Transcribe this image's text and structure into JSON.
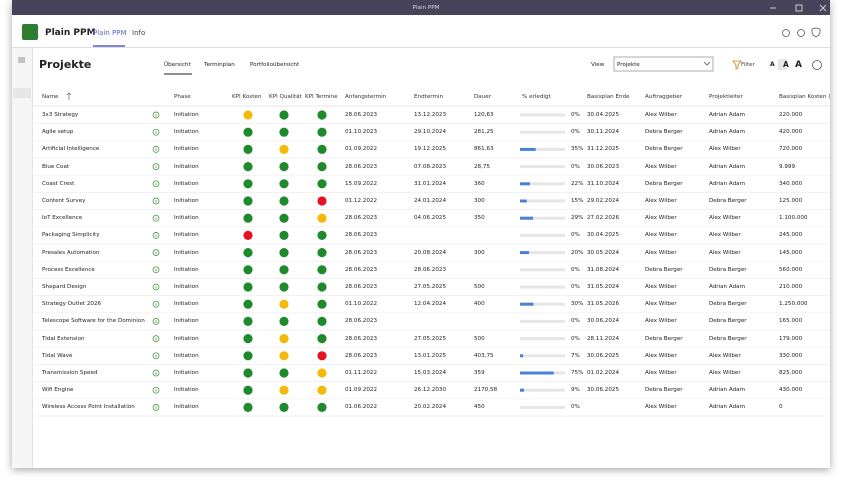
{
  "window": {
    "title": "Plain PPM"
  },
  "app": {
    "name": "Plain PPM",
    "tabs": [
      "Plain PPM",
      "Info"
    ]
  },
  "page": {
    "title": "Projekte",
    "views": [
      "Übersicht",
      "Terminplan",
      "Portfolioübersicht"
    ],
    "view_label": "View",
    "view_value": "Projekte",
    "filter": "Filter",
    "font_sizes": [
      "A",
      "A",
      "A"
    ]
  },
  "kpi_palette": {
    "green": "#1f8a2c",
    "yellow": "#f5b90a",
    "red": "#e81123"
  },
  "table": {
    "columns": [
      "Name",
      "Phase",
      "KPI Kosten",
      "KPI Qualität",
      "KPI Termine",
      "Anfangstermin",
      "Endtermin",
      "Dauer",
      "% erledigt",
      "Basisplan Ende",
      "Auftraggeber",
      "Projektleiter",
      "Basisplan Kosten (€)"
    ],
    "rows": [
      {
        "name": "3x3 Strategy",
        "phase": "Initiation",
        "kpi": [
          "yellow",
          "green",
          "green"
        ],
        "start": "28.06.2023",
        "end": "13.12.2023",
        "duration": "120,63",
        "done": 0,
        "done_label": "0%",
        "baseline_end": "30.04.2025",
        "client": "Alex Wilber",
        "manager": "Adrian Adam",
        "cost": "220.000"
      },
      {
        "name": "Agile setup",
        "phase": "Initiation",
        "kpi": [
          "green",
          "green",
          "green"
        ],
        "start": "01.10.2023",
        "end": "29.10.2024",
        "duration": "281,25",
        "done": 0,
        "done_label": "0%",
        "baseline_end": "30.11.2024",
        "client": "Debra Berger",
        "manager": "Adrian Adam",
        "cost": "420.000"
      },
      {
        "name": "Artificial Intelligence",
        "phase": "Initiation",
        "kpi": [
          "green",
          "yellow",
          "green"
        ],
        "start": "01.09.2022",
        "end": "19.12.2025",
        "duration": "861,63",
        "done": 35,
        "done_label": "35%",
        "baseline_end": "31.12.2025",
        "client": "Debra Berger",
        "manager": "Alex Wilber",
        "cost": "720.000"
      },
      {
        "name": "Blue Coat",
        "phase": "Initiation",
        "kpi": [
          "green",
          "green",
          "green"
        ],
        "start": "28.06.2023",
        "end": "07.08.2023",
        "duration": "28,75",
        "done": 0,
        "done_label": "0%",
        "baseline_end": "30.06.2023",
        "client": "Alex Wilber",
        "manager": "Adrian Adam",
        "cost": "9.999"
      },
      {
        "name": "Coast Crest",
        "phase": "Initiation",
        "kpi": [
          "green",
          "green",
          "green"
        ],
        "start": "15.09.2022",
        "end": "31.01.2024",
        "duration": "360",
        "done": 22,
        "done_label": "22%",
        "baseline_end": "31.10.2024",
        "client": "Debra Berger",
        "manager": "Adrian Adam",
        "cost": "340.000"
      },
      {
        "name": "Content Survey",
        "phase": "Initiation",
        "kpi": [
          "green",
          "green",
          "red"
        ],
        "start": "01.12.2022",
        "end": "24.01.2024",
        "duration": "300",
        "done": 15,
        "done_label": "15%",
        "baseline_end": "29.02.2024",
        "client": "Alex Wilber",
        "manager": "Debra Berger",
        "cost": "125.000"
      },
      {
        "name": "IoT Excellence",
        "phase": "Initiation",
        "kpi": [
          "green",
          "green",
          "yellow"
        ],
        "start": "28.06.2023",
        "end": "04.06.2025",
        "duration": "350",
        "done": 29,
        "done_label": "29%",
        "baseline_end": "27.02.2026",
        "client": "Alex Wilber",
        "manager": "Alex Wilber",
        "cost": "1.100.000"
      },
      {
        "name": "Packaging Simplicity",
        "phase": "Initiation",
        "kpi": [
          "red",
          "green",
          "green"
        ],
        "start": "28.06.2023",
        "end": null,
        "duration": null,
        "done": 0,
        "done_label": "0%",
        "baseline_end": "30.04.2025",
        "client": "Alex Wilber",
        "manager": "Alex Wilber",
        "cost": "245.000"
      },
      {
        "name": "Presales Automation",
        "phase": "Initiation",
        "kpi": [
          "green",
          "green",
          "green"
        ],
        "start": "28.06.2023",
        "end": "20.08.2024",
        "duration": "300",
        "done": 20,
        "done_label": "20%",
        "baseline_end": "30.05.2024",
        "client": "Alex Wilber",
        "manager": "Alex Wilber",
        "cost": "145.000"
      },
      {
        "name": "Process Excellence",
        "phase": "Initiation",
        "kpi": [
          "green",
          "green",
          "green"
        ],
        "start": "28.06.2023",
        "end": "28.06.2023",
        "duration": null,
        "done": 0,
        "done_label": "0%",
        "baseline_end": "31.08.2024",
        "client": "Debra Berger",
        "manager": "Debra Berger",
        "cost": "560.000"
      },
      {
        "name": "Shepard Design",
        "phase": "Initiation",
        "kpi": [
          "green",
          "green",
          "green"
        ],
        "start": "28.06.2023",
        "end": "27.05.2025",
        "duration": "500",
        "done": 0,
        "done_label": "0%",
        "baseline_end": "31.05.2024",
        "client": "Alex Wilber",
        "manager": "Adrian Adam",
        "cost": "210.000"
      },
      {
        "name": "Strategy Outlet 2026",
        "phase": "Initiation",
        "kpi": [
          "green",
          "yellow",
          "green"
        ],
        "start": "01.10.2022",
        "end": "12.04.2024",
        "duration": "400",
        "done": 30,
        "done_label": "30%",
        "baseline_end": "31.05.2026",
        "client": "Alex Wilber",
        "manager": "Debra Berger",
        "cost": "1.250.000"
      },
      {
        "name": "Telescope Software for the Dominion",
        "phase": "Initiation",
        "kpi": [
          "green",
          "green",
          "green"
        ],
        "start": "28.06.2023",
        "end": null,
        "duration": null,
        "done": 0,
        "done_label": "0%",
        "baseline_end": "30.06.2024",
        "client": "Alex Wilber",
        "manager": "Debra Berger",
        "cost": "165.000"
      },
      {
        "name": "Tidal Extension",
        "phase": "Initiation",
        "kpi": [
          "green",
          "yellow",
          "green"
        ],
        "start": "28.06.2023",
        "end": "27.05.2025",
        "duration": "500",
        "done": 0,
        "done_label": "0%",
        "baseline_end": "28.11.2024",
        "client": "Debra Berger",
        "manager": "Debra Berger",
        "cost": "179.000"
      },
      {
        "name": "Tidal Wave",
        "phase": "Initiation",
        "kpi": [
          "green",
          "yellow",
          "red"
        ],
        "start": "28.06.2023",
        "end": "13.01.2025",
        "duration": "403,75",
        "done": 7,
        "done_label": "7%",
        "baseline_end": "30.06.2025",
        "client": "Alex Wilber",
        "manager": "Alex Wilber",
        "cost": "330.000"
      },
      {
        "name": "Transmission Speed",
        "phase": "Initiation",
        "kpi": [
          "green",
          "green",
          "yellow"
        ],
        "start": "01.11.2022",
        "end": "15.03.2024",
        "duration": "359",
        "done": 75,
        "done_label": "75%",
        "baseline_end": "01.02.2024",
        "client": "Alex Wilber",
        "manager": "Alex Wilber",
        "cost": "825.000"
      },
      {
        "name": "Wifi Engine",
        "phase": "Initiation",
        "kpi": [
          "green",
          "yellow",
          "yellow"
        ],
        "start": "01.09.2022",
        "end": "26.12.2030",
        "duration": "2170,58",
        "done": 9,
        "done_label": "9%",
        "baseline_end": "30.06.2025",
        "client": "Debra Berger",
        "manager": "Adrian Adam",
        "cost": "430.000"
      },
      {
        "name": "Wireless Access Point Installation",
        "phase": "Initiation",
        "kpi": [
          "green",
          "green",
          "green"
        ],
        "start": "01.06.2022",
        "end": "20.02.2024",
        "duration": "450",
        "done": 0,
        "done_label": "0%",
        "baseline_end": null,
        "client": "Alex Wilber",
        "manager": "Adrian Adam",
        "cost": "0"
      }
    ]
  }
}
